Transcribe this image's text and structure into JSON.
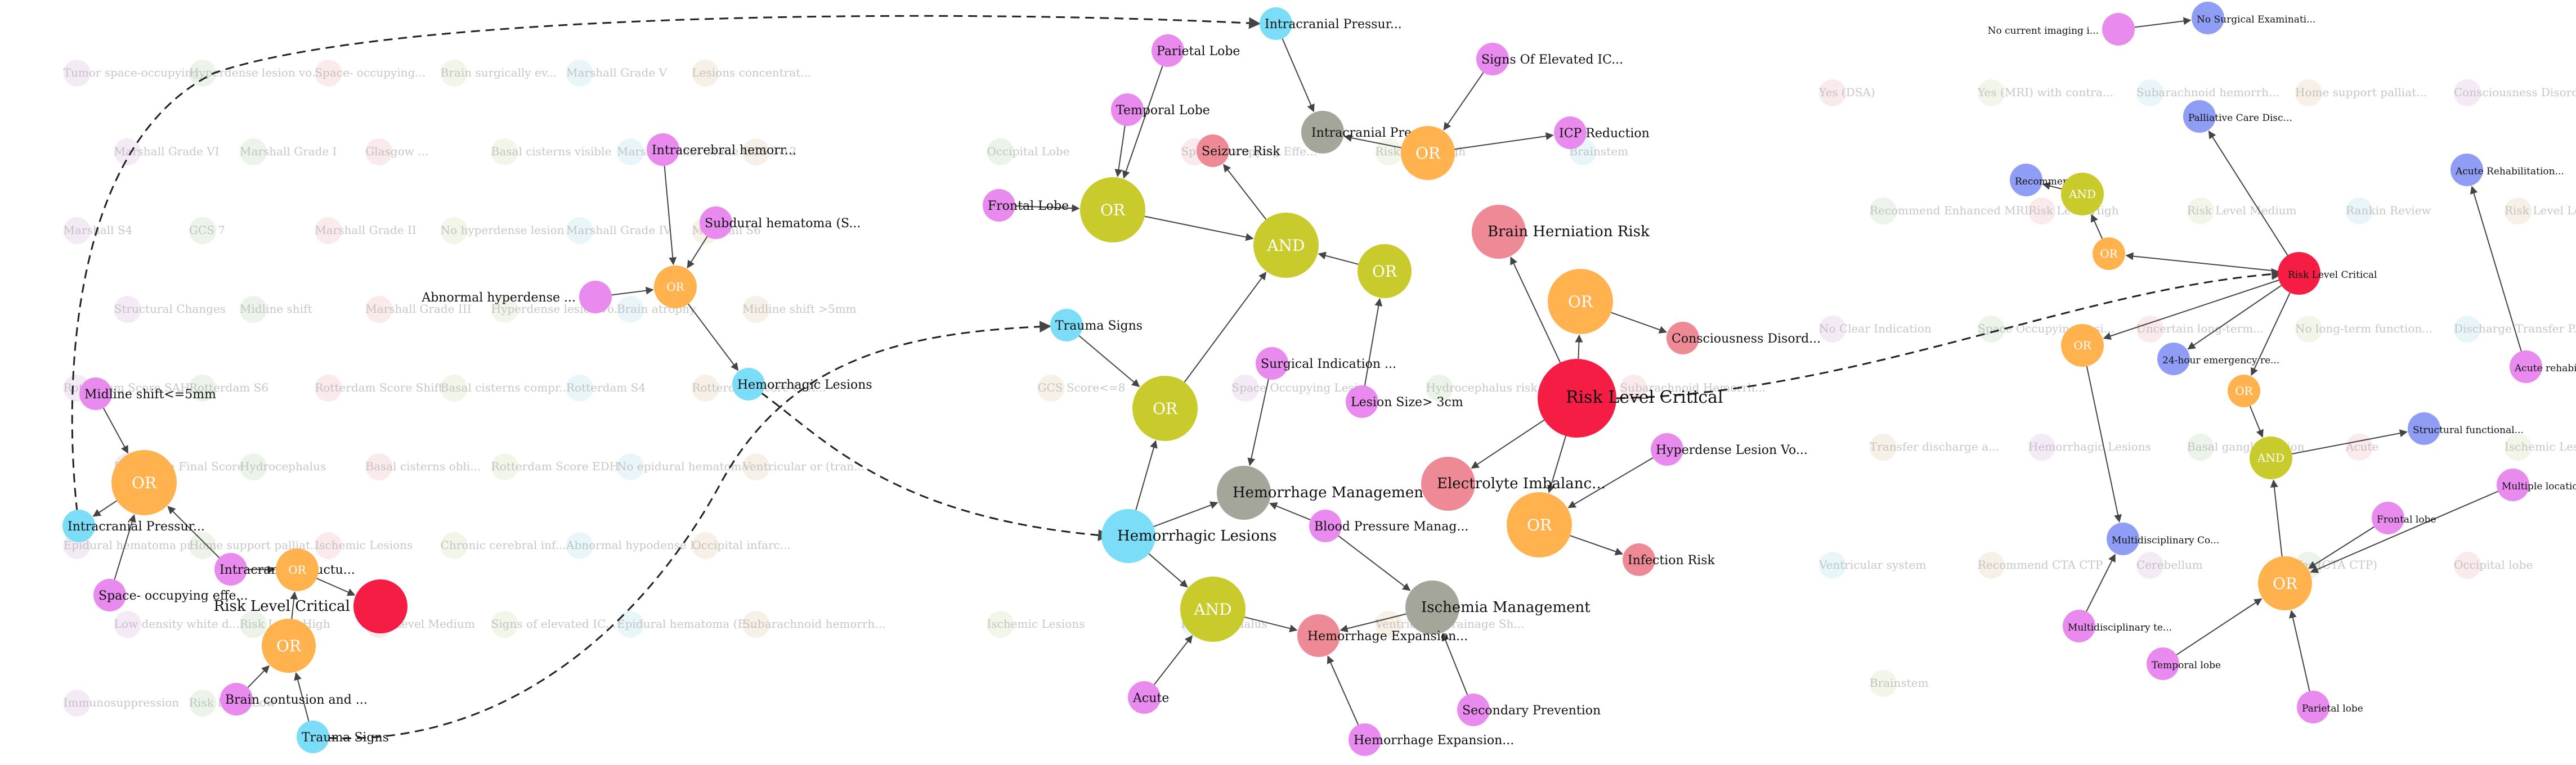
{
  "palette": {
    "or": "#FFB24D",
    "and": "#C9CA2B",
    "risk": "#F61D44",
    "pink": "#EE8A95",
    "violet": "#E98AEE",
    "cyan": "#7BDDF7",
    "gray": "#A5A69A",
    "blue": "#8F9DF5",
    "edge": "#444444"
  },
  "clusters": [
    {
      "name": "left",
      "nodes": [
        {
          "id": "L_OR1",
          "label": "OR",
          "kind": "or",
          "size": "xl"
        },
        {
          "id": "L_midline",
          "label": "Midline shift<=5mm",
          "kind": "violet",
          "size": "s"
        },
        {
          "id": "L_icp",
          "label": "Intracranial Pressur...",
          "kind": "cyan",
          "size": "s"
        },
        {
          "id": "L_space",
          "label": "Space-  occupying effe...",
          "kind": "violet",
          "size": "s"
        },
        {
          "id": "L_intrastruct",
          "label": "Intracranial structu...",
          "kind": "violet",
          "size": "s"
        },
        {
          "id": "L_OR2",
          "label": "OR",
          "kind": "or",
          "size": "m"
        },
        {
          "id": "L_risk",
          "label": "Risk Level Critical",
          "kind": "risk",
          "size": "l"
        },
        {
          "id": "L_OR3",
          "label": "OR",
          "kind": "or",
          "size": "l"
        },
        {
          "id": "L_brain",
          "label": "Brain contusion and ...",
          "kind": "violet",
          "size": "s"
        },
        {
          "id": "L_trauma",
          "label": "Trauma Signs",
          "kind": "cyan",
          "size": "s"
        },
        {
          "id": "L_intracerebral",
          "label": "Intracerebral hemorr...",
          "kind": "violet",
          "size": "s"
        },
        {
          "id": "L_subdural",
          "label": "Subdural hematoma (S...",
          "kind": "violet",
          "size": "s"
        },
        {
          "id": "L_abnormal",
          "label": "Abnormal hyperdense ...",
          "kind": "violet",
          "size": "s"
        },
        {
          "id": "L_OR4",
          "label": "OR",
          "kind": "or",
          "size": "m"
        },
        {
          "id": "L_hemlesions",
          "label": "Hemorrhagic Lesions",
          "kind": "cyan",
          "size": "s"
        }
      ],
      "ghosts": [
        "Tumor space-occupying...",
        "Hyperdense lesion vo...",
        "Space-  occupying...",
        "Brain surgically ev...",
        "Marshall Grade V",
        "Lesions concentrat...",
        "Marshall Grade VI",
        "Marshall Grade I",
        "Glasgow ...",
        "Basal cisterns visible",
        "Marshall Final Grade",
        "GCS 3-12",
        "Marshall S4",
        "GCS 7",
        "Marshall Grade II",
        "No hyperdense lesion",
        "Marshall Grade IV",
        "Marshall S6",
        "Structural Changes",
        "Midline shift",
        "Marshall Grade III",
        "Hyperdense lesion vo...",
        "Brain atrophy",
        "Midline shift >5mm",
        "Rotterdam Score SAH",
        "Rotterdam S6",
        "Rotterdam Score Shift",
        "Basal cisterns compr...",
        "Rotterdam S4",
        "Rotterdam Score Cist...",
        "Rotterdam Final Score",
        "Hydrocephalus",
        "Basal cisterns obli...",
        "Rotterdam Score EDH",
        "No epidural hematoma",
        "Ventricular or (tran...",
        "Epidural hematoma pr...",
        "Home support palliat...",
        "Ischemic Lesions",
        "Chronic cerebral inf...",
        "Abnormal hypodense l...",
        "Occipital infarc...",
        "Low density white d...",
        "Risk Level High",
        "Risk Level Medium",
        "Signs of elevated IC...",
        "Epidural hematoma (E...",
        "Subarachnoid hemorrh...",
        "Immunosuppression",
        "Risk Level Low"
      ]
    },
    {
      "name": "center",
      "nodes": [
        {
          "id": "C_icp",
          "label": "Intracranial Pressur...",
          "kind": "cyan",
          "size": "s"
        },
        {
          "id": "C_parietal",
          "label": "Parietal Lobe",
          "kind": "violet",
          "size": "s"
        },
        {
          "id": "C_signs",
          "label": "Signs Of Elevated IC...",
          "kind": "violet",
          "size": "s"
        },
        {
          "id": "C_icpmgmt",
          "label": "Intracranial Pressur...",
          "kind": "gray",
          "size": "m"
        },
        {
          "id": "C_OR_top",
          "label": "OR",
          "kind": "or",
          "size": "l"
        },
        {
          "id": "C_icpred",
          "label": "ICP Reduction",
          "kind": "violet",
          "size": "s"
        },
        {
          "id": "C_temporal",
          "label": "Temporal Lobe",
          "kind": "violet",
          "size": "s"
        },
        {
          "id": "C_seizure",
          "label": "Seizure Risk",
          "kind": "pink",
          "size": "s"
        },
        {
          "id": "C_frontal",
          "label": "Frontal Lobe",
          "kind": "violet",
          "size": "s"
        },
        {
          "id": "C_OR_lobe",
          "label": "OR",
          "kind": "and",
          "size": "xl"
        },
        {
          "id": "C_AND",
          "label": "AND",
          "kind": "and",
          "size": "xl"
        },
        {
          "id": "C_OR_mid",
          "label": "OR",
          "kind": "and",
          "size": "l"
        },
        {
          "id": "C_brainhern",
          "label": "Brain Herniation Risk",
          "kind": "pink",
          "size": "l"
        },
        {
          "id": "C_OR_right",
          "label": "OR",
          "kind": "or",
          "size": "xl"
        },
        {
          "id": "C_conscious",
          "label": "Consciousness Disord...",
          "kind": "pink",
          "size": "s"
        },
        {
          "id": "C_trauma",
          "label": "Trauma Signs",
          "kind": "cyan",
          "size": "s"
        },
        {
          "id": "C_OR_trauma",
          "label": "OR",
          "kind": "and",
          "size": "xl"
        },
        {
          "id": "C_surgical",
          "label": "Surgical Indication ...",
          "kind": "violet",
          "size": "s"
        },
        {
          "id": "C_lesion",
          "label": "Lesion Size> 3cm",
          "kind": "violet",
          "size": "s"
        },
        {
          "id": "C_risk",
          "label": "Risk Level Critical",
          "kind": "risk",
          "size": "xxl"
        },
        {
          "id": "C_hyper",
          "label": "Hyperdense Lesion Vo...",
          "kind": "violet",
          "size": "s"
        },
        {
          "id": "C_hemmgmt",
          "label": "Hemorrhage Management",
          "kind": "gray",
          "size": "l"
        },
        {
          "id": "C_electro",
          "label": "Electrolyte Imbalanc...",
          "kind": "pink",
          "size": "l"
        },
        {
          "id": "C_OR_inf",
          "label": "OR",
          "kind": "or",
          "size": "xl"
        },
        {
          "id": "C_hemles",
          "label": "Hemorrhagic Lesions",
          "kind": "cyan",
          "size": "l"
        },
        {
          "id": "C_bp",
          "label": "Blood Pressure Manag...",
          "kind": "violet",
          "size": "s"
        },
        {
          "id": "C_infection",
          "label": "Infection Risk",
          "kind": "pink",
          "size": "s"
        },
        {
          "id": "C_AND2",
          "label": "AND",
          "kind": "and",
          "size": "xl"
        },
        {
          "id": "C_ischemia",
          "label": "Ischemia Management",
          "kind": "gray",
          "size": "l"
        },
        {
          "id": "C_hemexp1",
          "label": "Hemorrhage Expansion...",
          "kind": "pink",
          "size": "m"
        },
        {
          "id": "C_acute",
          "label": "Acute",
          "kind": "violet",
          "size": "s"
        },
        {
          "id": "C_secondary",
          "label": "Secondary Prevention",
          "kind": "violet",
          "size": "s"
        },
        {
          "id": "C_hemexp2",
          "label": "Hemorrhage Expansion...",
          "kind": "violet",
          "size": "s"
        }
      ],
      "ghosts": [
        "Occipital Lobe",
        "Space Occupying Effe...",
        "Risk Level High",
        "Brainstem",
        "GCS Score<=8",
        "Space Occupying Lesi...",
        "Hydrocephalus risk",
        "Subarachnoid Hemorrh...",
        "Ischemic Lesions",
        "Hydrocephalus",
        "Ventricular Drainage Sh..."
      ]
    },
    {
      "name": "right",
      "nodes": [
        {
          "id": "R_noimg",
          "label": "No current imaging i...",
          "kind": "violet",
          "size": "s"
        },
        {
          "id": "R_nosurg",
          "label": "No Surgical Examinati...",
          "kind": "blue",
          "size": "s"
        },
        {
          "id": "R_palliative",
          "label": "Palliative Care Disc...",
          "kind": "blue",
          "size": "s"
        },
        {
          "id": "R_dsa",
          "label": "Recommend DSA",
          "kind": "blue",
          "size": "s"
        },
        {
          "id": "R_AND_top",
          "label": "AND",
          "kind": "and",
          "size": "m"
        },
        {
          "id": "R_OR_top",
          "label": "OR",
          "kind": "or",
          "size": "s"
        },
        {
          "id": "R_acutereh",
          "label": "Acute Rehabilitation...",
          "kind": "blue",
          "size": "s"
        },
        {
          "id": "R_risk",
          "label": "Risk Level Critical",
          "kind": "risk",
          "size": "m"
        },
        {
          "id": "R_OR_a",
          "label": "OR",
          "kind": "or",
          "size": "m"
        },
        {
          "id": "R_24h",
          "label": "24-hour emergency re...",
          "kind": "blue",
          "size": "s"
        },
        {
          "id": "R_OR_b",
          "label": "OR",
          "kind": "or",
          "size": "s"
        },
        {
          "id": "R_acuterehab2",
          "label": "Acute rehabilitation",
          "kind": "violet",
          "size": "s"
        },
        {
          "id": "R_AND_mid",
          "label": "AND",
          "kind": "and",
          "size": "m"
        },
        {
          "id": "R_structfn",
          "label": "Structural functional...",
          "kind": "blue",
          "size": "s"
        },
        {
          "id": "R_multiloc",
          "label": "Multiple locations (L...",
          "kind": "violet",
          "size": "s"
        },
        {
          "id": "R_frontal",
          "label": "Frontal lobe",
          "kind": "violet",
          "size": "s"
        },
        {
          "id": "R_multiconsult",
          "label": "Multidisciplinary Co...",
          "kind": "blue",
          "size": "s"
        },
        {
          "id": "R_OR_big",
          "label": "OR",
          "kind": "or",
          "size": "l"
        },
        {
          "id": "R_multitreat",
          "label": "Multidisciplinary te...",
          "kind": "violet",
          "size": "s"
        },
        {
          "id": "R_temporal",
          "label": "Temporal lobe",
          "kind": "violet",
          "size": "s"
        },
        {
          "id": "R_parietal",
          "label": "Parietal lobe",
          "kind": "violet",
          "size": "s"
        }
      ],
      "ghosts": [
        "Yes (DSA)",
        "Yes (MRI) with contra...",
        "Subarachnoid hemorrh...",
        "Home support palliat...",
        "Consciousness Disord...",
        "Recommend Enhanced MRI",
        "Risk Level High",
        "Risk Level Medium",
        "Rankin Review",
        "Risk Level Low",
        "No Clear Indication",
        "Space Occupying Lesi...",
        "Uncertain long-term...",
        "No long-term function...",
        "Discharge Transfer P...",
        "Transfer discharge a...",
        "Hemorrhagic Lesions",
        "Basal ganglia region",
        "Acute",
        "Ischemic Lesions",
        "Ventricular system",
        "Recommend CTA CTP",
        "Cerebellum",
        "Yes (CTA CTP)",
        "Occipital lobe",
        "Brainstem"
      ]
    }
  ]
}
